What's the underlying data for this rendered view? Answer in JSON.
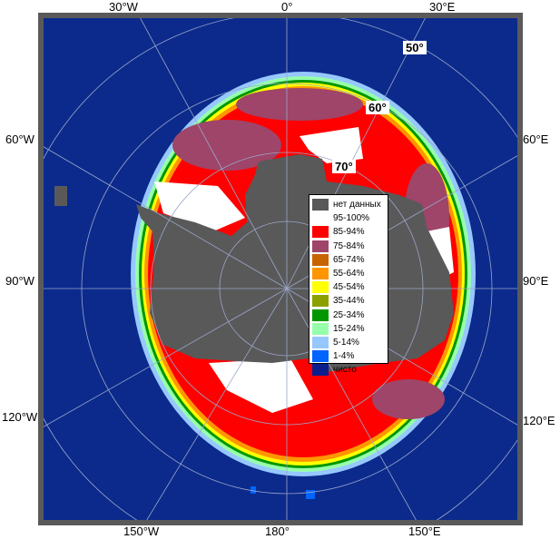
{
  "map": {
    "colors": {
      "ocean": "#0b2a8c",
      "land": "#595959",
      "frame": "#5a5a5a",
      "grid": "#9aa6c8"
    },
    "longitude_labels": {
      "top_30w": "30°W",
      "top_0": "0°",
      "top_30e": "30°E",
      "left_60w": "60°W",
      "right_60e": "60°E",
      "left_90w": "90°W",
      "right_90e": "90°E",
      "left_120w": "120°W",
      "right_120e": "120°E",
      "bottom_150w": "150°W",
      "bottom_180": "180°",
      "bottom_150e": "150°E"
    },
    "latitude_labels": {
      "lat50": "50°",
      "lat60": "60°",
      "lat70": "70°"
    },
    "legend": [
      {
        "label": "нет данных",
        "color": "#595959"
      },
      {
        "label": "95-100%",
        "color": "#ffffff"
      },
      {
        "label": "85-94%",
        "color": "#ff0000"
      },
      {
        "label": "75-84%",
        "color": "#9e4569"
      },
      {
        "label": "65-74%",
        "color": "#c86400"
      },
      {
        "label": "55-64%",
        "color": "#ff9600"
      },
      {
        "label": "45-54%",
        "color": "#ffff00"
      },
      {
        "label": "35-44%",
        "color": "#8ca000"
      },
      {
        "label": "25-34%",
        "color": "#009600"
      },
      {
        "label": "15-24%",
        "color": "#96ffaa"
      },
      {
        "label": "5-14%",
        "color": "#96c8ff"
      },
      {
        "label": "1-4%",
        "color": "#0064ff"
      },
      {
        "label": "чисто",
        "color": "#0b1e8c"
      }
    ]
  }
}
